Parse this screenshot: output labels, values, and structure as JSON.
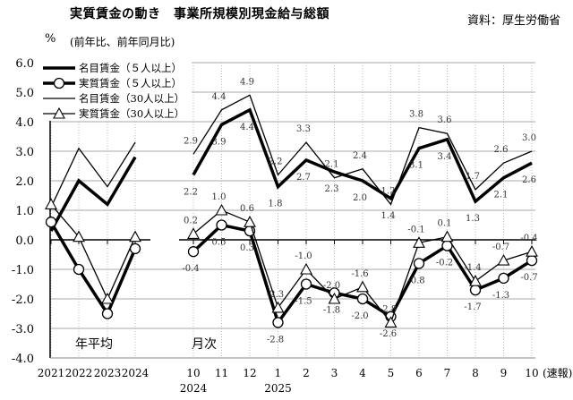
{
  "chart_data": {
    "type": "line",
    "title": "実質賃金の動き　事業所規模別現金給与総額",
    "source": "資料：厚生労働省",
    "unit": "%",
    "subtitle": "(前年比、前年同月比)",
    "ylim": [
      -4.0,
      6.0
    ],
    "yticks": [
      "6.0",
      "5.0",
      "4.0",
      "3.0",
      "2.0",
      "1.0",
      "0.0",
      "-1.0",
      "-2.0",
      "-3.0",
      "-4.0"
    ],
    "grid": true,
    "legend_position": "top-left",
    "annual": {
      "label": "年平均",
      "categories": [
        "2021",
        "2022",
        "2023",
        "2024"
      ]
    },
    "monthly": {
      "label": "月次",
      "categories": [
        "10",
        "11",
        "12",
        "1",
        "2",
        "3",
        "4",
        "5",
        "6",
        "7",
        "8",
        "9",
        "10"
      ],
      "year_labels": [
        "2024",
        "2025"
      ],
      "prelim_label": "(速報)"
    },
    "series": [
      {
        "name": "名目賃金（５人以上）",
        "style": "thick",
        "annual": [
          0.3,
          2.0,
          1.2,
          2.8
        ],
        "monthly": [
          2.2,
          3.9,
          4.4,
          1.8,
          2.7,
          2.3,
          2.0,
          1.4,
          3.1,
          3.4,
          1.3,
          2.1,
          2.6
        ]
      },
      {
        "name": "実質賃金（５人以上）",
        "style": "thick-circle",
        "annual": [
          0.6,
          -1.0,
          -2.5,
          -0.3
        ],
        "monthly": [
          -0.4,
          0.5,
          0.3,
          -2.8,
          -1.5,
          -1.8,
          -2.0,
          -2.6,
          -0.8,
          -0.2,
          -1.7,
          -1.3,
          -0.7
        ]
      },
      {
        "name": "名目賃金（30人以上）",
        "style": "thin",
        "annual": [
          1.1,
          3.1,
          1.8,
          3.3
        ],
        "monthly": [
          2.9,
          4.4,
          4.9,
          2.2,
          3.3,
          2.1,
          2.4,
          1.2,
          3.8,
          3.6,
          1.7,
          2.6,
          3.0
        ]
      },
      {
        "name": "実質賃金（30人以上）",
        "style": "thin-triangle",
        "annual": [
          1.2,
          0.1,
          -2.0,
          0.1
        ],
        "monthly": [
          0.2,
          1.0,
          0.6,
          -2.3,
          -1.0,
          -2.0,
          -1.6,
          -2.8,
          -0.1,
          0.1,
          -1.4,
          -0.7,
          -0.4
        ]
      }
    ]
  }
}
